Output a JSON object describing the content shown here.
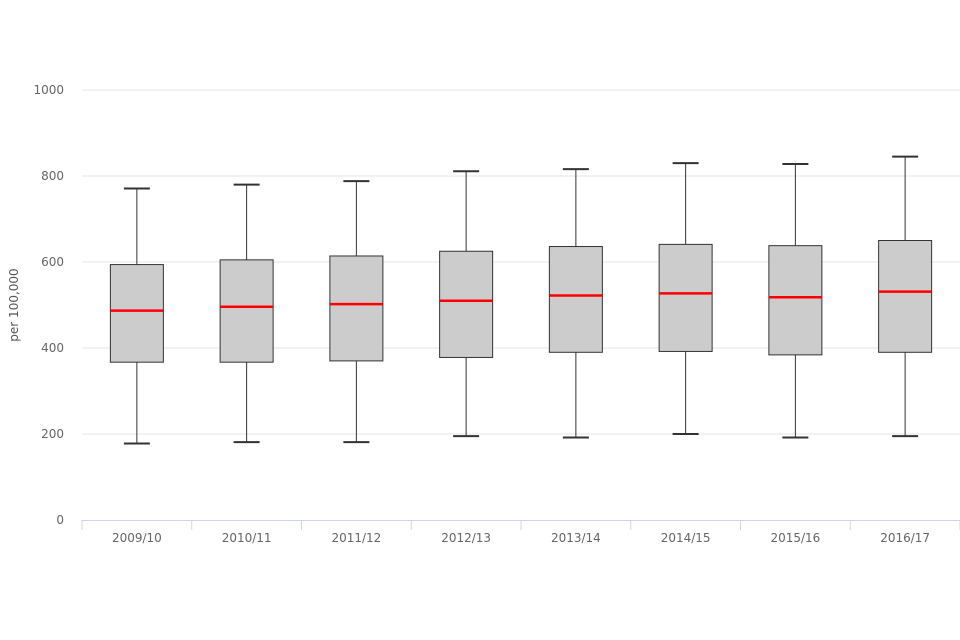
{
  "chart_data": {
    "type": "boxplot",
    "title": "",
    "xlabel": "",
    "ylabel": "per 100,000",
    "ylim": [
      0,
      1000
    ],
    "yticks": [
      0,
      200,
      400,
      600,
      800,
      1000
    ],
    "grid": true,
    "legend": "none",
    "categories": [
      "2009/10",
      "2010/11",
      "2011/12",
      "2012/13",
      "2013/14",
      "2014/15",
      "2015/16",
      "2016/17"
    ],
    "boxes": [
      {
        "min": 178,
        "q1": 367,
        "median": 487,
        "q3": 594,
        "max": 771
      },
      {
        "min": 181,
        "q1": 367,
        "median": 496,
        "q3": 605,
        "max": 780
      },
      {
        "min": 181,
        "q1": 370,
        "median": 502,
        "q3": 614,
        "max": 788
      },
      {
        "min": 195,
        "q1": 378,
        "median": 510,
        "q3": 625,
        "max": 811
      },
      {
        "min": 192,
        "q1": 390,
        "median": 522,
        "q3": 636,
        "max": 816
      },
      {
        "min": 200,
        "q1": 392,
        "median": 527,
        "q3": 641,
        "max": 830
      },
      {
        "min": 192,
        "q1": 384,
        "median": 518,
        "q3": 638,
        "max": 828
      },
      {
        "min": 195,
        "q1": 390,
        "median": 531,
        "q3": 650,
        "max": 845
      }
    ],
    "colors": {
      "box_fill": "#cccccc",
      "box_stroke": "#333333",
      "median": "#ff0000",
      "grid": "#e6e6e6",
      "axis": "#ccd6eb"
    }
  }
}
